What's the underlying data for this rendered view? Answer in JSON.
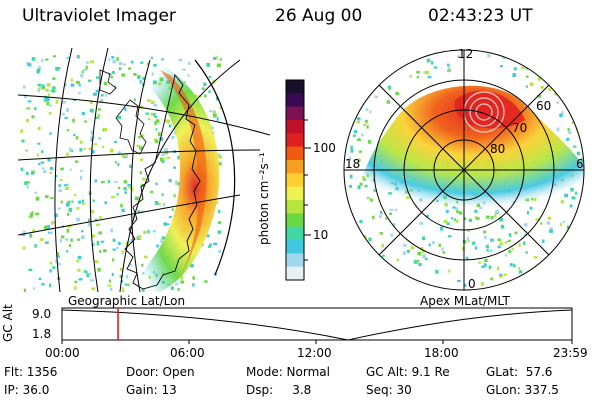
{
  "header": {
    "title": "Ultraviolet Imager",
    "date": "26 Aug 00",
    "time": "02:43:23 UT"
  },
  "panels": {
    "left_label": "Geographic Lat/Lon",
    "right_label": "Apex MLat/MLT"
  },
  "polar": {
    "mlt_labels": [
      "12",
      "18",
      "6",
      "0"
    ],
    "lat_labels": [
      "60",
      "70",
      "80"
    ]
  },
  "colorbar": {
    "unit_label": "photon cm⁻²s⁻¹",
    "ticks": [
      "100",
      "10"
    ],
    "colors": [
      "#1a0f2a",
      "#3a0a55",
      "#7a1255",
      "#c0102a",
      "#e02020",
      "#f05a10",
      "#f7a020",
      "#fbd030",
      "#f0f050",
      "#b8e640",
      "#6ad840",
      "#40d8a0",
      "#40c8e0",
      "#a0d8f0",
      "#e8f0f4"
    ]
  },
  "timeline": {
    "axis_label": "GC Alt",
    "y_labels": [
      "9.0",
      "1.8"
    ],
    "x_labels": [
      "00:00",
      "06:00",
      "12:00",
      "18:00",
      "23:59"
    ],
    "cursor_color": "#e01010"
  },
  "info": {
    "flt": "Flt: 1356",
    "door": "Door: Open",
    "mode": "Mode: Normal",
    "gcalt": "GC Alt: 9.1 Re",
    "glat": "GLat:  57.6",
    "ip": "IP: 36.0",
    "gain": "Gain: 13",
    "dsp": "Dsp:     3.8",
    "seq": "Seq: 30",
    "glon": "GLon: 337.5"
  }
}
